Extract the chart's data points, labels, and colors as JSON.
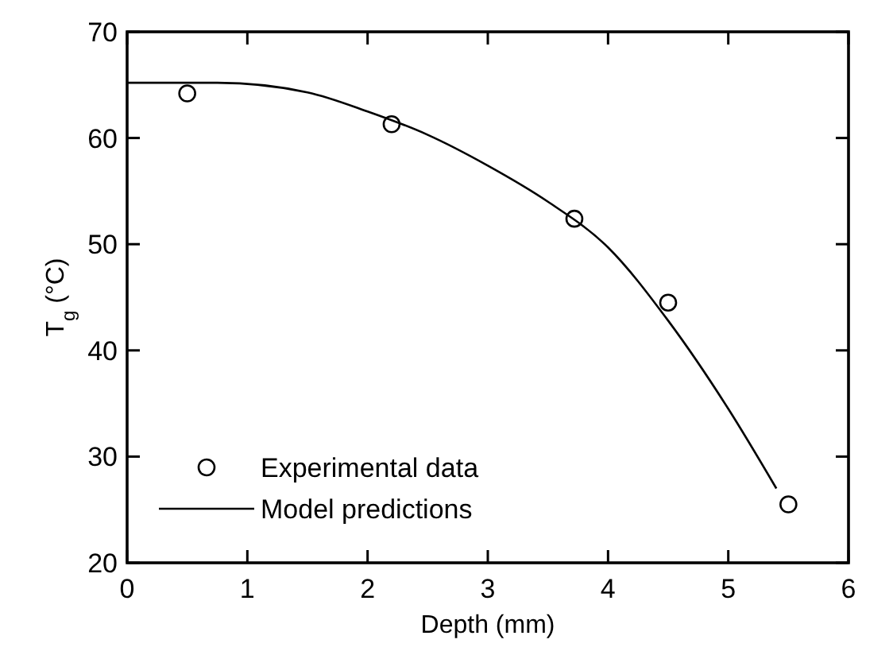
{
  "chart_data": {
    "type": "scatter",
    "xlabel": "Depth (mm)",
    "ylabel": "T$_{g}$ (°C)",
    "xlim": [
      0,
      6
    ],
    "ylim": [
      20,
      70
    ],
    "xticks": [
      0,
      1,
      2,
      3,
      4,
      5,
      6
    ],
    "yticks": [
      20,
      30,
      40,
      50,
      60,
      70
    ],
    "legend": "bottom left",
    "grid": false,
    "series": [
      {
        "name": "Experimental data",
        "marker": "circle",
        "color": "#000000",
        "x": [
          0.5,
          2.2,
          3.72,
          4.5,
          5.5
        ],
        "values": [
          64.2,
          61.3,
          52.4,
          44.5,
          25.5
        ]
      },
      {
        "name": "Model predictions",
        "type": "line",
        "marker": "none",
        "line_style": "solid",
        "color": "#000000",
        "x": [
          0,
          0.75,
          1.5,
          2,
          2.5,
          3,
          3.5,
          4,
          4.5,
          5,
          5.4
        ],
        "values": [
          65.2,
          65.2,
          64.3,
          62.5,
          60.3,
          57.4,
          54,
          49.7,
          42.8,
          34.5,
          27
        ]
      }
    ]
  }
}
